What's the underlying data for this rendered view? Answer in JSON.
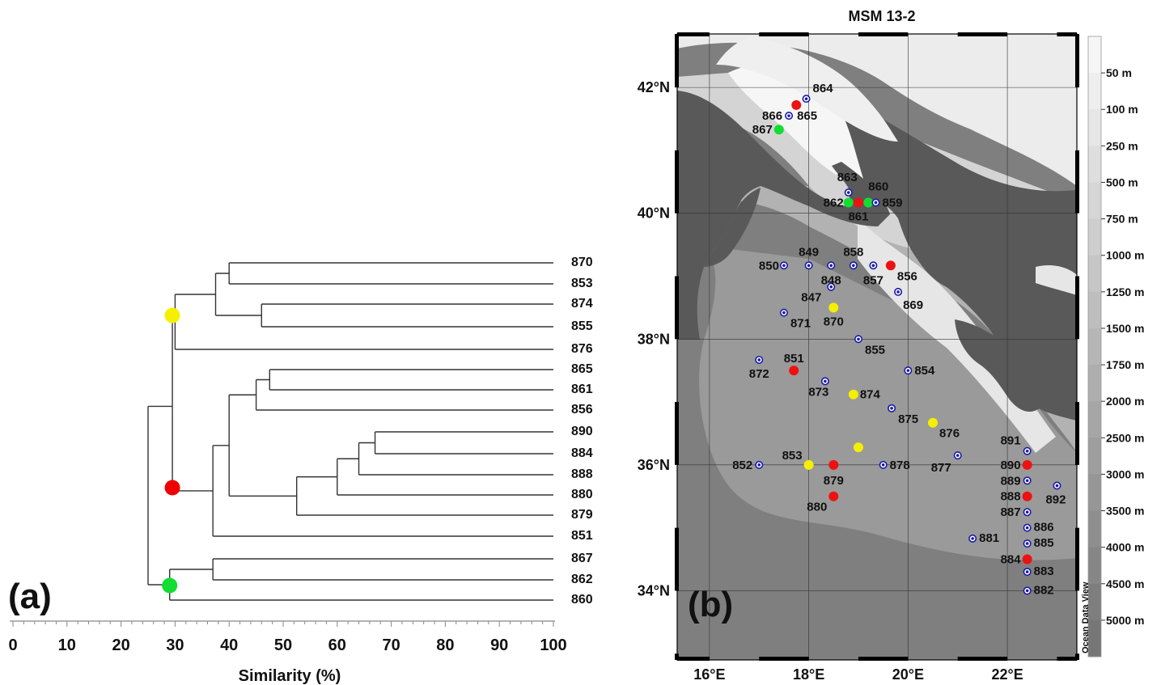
{
  "panel_a": {
    "tag": "(a)",
    "xlabel": "Similarity (%)",
    "ticks": [
      0,
      10,
      20,
      30,
      40,
      50,
      60,
      70,
      80,
      90,
      100
    ],
    "leaves": [
      "870",
      "853",
      "874",
      "855",
      "876",
      "865",
      "861",
      "856",
      "890",
      "884",
      "888",
      "880",
      "879",
      "851",
      "867",
      "862",
      "860"
    ],
    "clusters": [
      {
        "color": "#f5f000",
        "sim": 29.5
      },
      {
        "color": "#ee0000",
        "sim": 29.5
      },
      {
        "color": "#11dd33",
        "sim": 29.0
      }
    ],
    "chart_data": {
      "type": "dendrogram",
      "xlabel": "Similarity (%)",
      "xlim": [
        0,
        100
      ],
      "merges": [
        {
          "a": "870",
          "b": "853",
          "sim": 40
        },
        {
          "a": "874",
          "b": "855",
          "sim": 46
        },
        {
          "a": "870+853",
          "b": "874+855",
          "sim": 37.5
        },
        {
          "a": "870+853+874+855",
          "b": "876",
          "sim": 30
        },
        {
          "a": "865",
          "b": "861",
          "sim": 47.5
        },
        {
          "a": "865+861",
          "b": "856",
          "sim": 45
        },
        {
          "a": "890",
          "b": "884",
          "sim": 67
        },
        {
          "a": "890+884",
          "b": "888",
          "sim": 64
        },
        {
          "a": "890+884+888",
          "b": "880",
          "sim": 60
        },
        {
          "a": "890+884+888+880",
          "b": "879",
          "sim": 52.5
        },
        {
          "a": "865+861+856",
          "b": "890+884+888+880+879",
          "sim": 40
        },
        {
          "a": "865..879",
          "b": "851",
          "sim": 37
        },
        {
          "a": "yellow",
          "b": "red",
          "sim": 29.5
        },
        {
          "a": "867",
          "b": "862",
          "sim": 37
        },
        {
          "a": "867+862",
          "b": "860",
          "sim": 29
        },
        {
          "a": "yellow+red",
          "b": "green",
          "sim": 25
        }
      ]
    }
  },
  "panel_b": {
    "tag": "(b)",
    "title": "MSM 13-2",
    "lon_labels": [
      "16°E",
      "18°E",
      "20°E",
      "22°E"
    ],
    "lat_labels": [
      "42°N",
      "40°N",
      "38°N",
      "36°N",
      "34°N"
    ],
    "depth_labels": [
      "50 m",
      "100 m",
      "250 m",
      "500 m",
      "750 m",
      "1000 m",
      "1250 m",
      "1500 m",
      "1750 m",
      "2000 m",
      "2500 m",
      "3000 m",
      "3500 m",
      "4000 m",
      "4500 m",
      "5000 m"
    ],
    "watermark": "Ocean Data View",
    "stations": [
      {
        "id": "864",
        "lon": 17.95,
        "lat": 41.82,
        "c": "blue"
      },
      {
        "id": "",
        "lon": 17.75,
        "lat": 41.72,
        "c": "red"
      },
      {
        "id": "866",
        "lon": 17.6,
        "lat": 41.55,
        "c": "blue"
      },
      {
        "id": "865",
        "lon": 17.6,
        "lat": 41.55,
        "c": "none"
      },
      {
        "id": "867",
        "lon": 17.4,
        "lat": 41.33,
        "c": "green"
      },
      {
        "id": "863",
        "lon": 18.8,
        "lat": 40.33,
        "c": "blue"
      },
      {
        "id": "860",
        "lon": 19.2,
        "lat": 40.17,
        "c": "green"
      },
      {
        "id": "862",
        "lon": 18.8,
        "lat": 40.17,
        "c": "green"
      },
      {
        "id": "861",
        "lon": 19.0,
        "lat": 40.17,
        "c": "red"
      },
      {
        "id": "859",
        "lon": 19.35,
        "lat": 40.17,
        "c": "blue"
      },
      {
        "id": "850",
        "lon": 17.5,
        "lat": 39.17,
        "c": "blue"
      },
      {
        "id": "849",
        "lon": 18.0,
        "lat": 39.17,
        "c": "blue"
      },
      {
        "id": "",
        "lon": 18.45,
        "lat": 39.17,
        "c": "blue"
      },
      {
        "id": "858",
        "lon": 18.9,
        "lat": 39.17,
        "c": "blue"
      },
      {
        "id": "857",
        "lon": 19.3,
        "lat": 39.17,
        "c": "blue"
      },
      {
        "id": "856",
        "lon": 19.65,
        "lat": 39.17,
        "c": "red"
      },
      {
        "id": "848",
        "lon": 18.45,
        "lat": 38.83,
        "c": "blue"
      },
      {
        "id": "869",
        "lon": 19.8,
        "lat": 38.75,
        "c": "blue"
      },
      {
        "id": "847",
        "lon": 18.5,
        "lat": 38.5,
        "c": "yellow"
      },
      {
        "id": "871",
        "lon": 17.5,
        "lat": 38.42,
        "c": "blue"
      },
      {
        "id": "870",
        "lon": 18.5,
        "lat": 38.5,
        "c": "none"
      },
      {
        "id": "855",
        "lon": 19.0,
        "lat": 38.0,
        "c": "blue"
      },
      {
        "id": "851",
        "lon": 17.7,
        "lat": 37.5,
        "c": "red"
      },
      {
        "id": "872",
        "lon": 17.0,
        "lat": 37.67,
        "c": "blue"
      },
      {
        "id": "854",
        "lon": 20.0,
        "lat": 37.5,
        "c": "blue"
      },
      {
        "id": "873",
        "lon": 18.33,
        "lat": 37.33,
        "c": "blue"
      },
      {
        "id": "874",
        "lon": 18.9,
        "lat": 37.12,
        "c": "yellow"
      },
      {
        "id": "875",
        "lon": 19.67,
        "lat": 36.9,
        "c": "blue"
      },
      {
        "id": "876",
        "lon": 20.5,
        "lat": 36.67,
        "c": "yellow"
      },
      {
        "id": "",
        "lon": 19.0,
        "lat": 36.28,
        "c": "yellow"
      },
      {
        "id": "891",
        "lon": 22.4,
        "lat": 36.22,
        "c": "blue"
      },
      {
        "id": "877",
        "lon": 21.0,
        "lat": 36.15,
        "c": "blue"
      },
      {
        "id": "852",
        "lon": 17.0,
        "lat": 36.0,
        "c": "blue"
      },
      {
        "id": "853",
        "lon": 18.0,
        "lat": 36.0,
        "c": "yellow"
      },
      {
        "id": "879",
        "lon": 18.5,
        "lat": 36.0,
        "c": "red"
      },
      {
        "id": "878",
        "lon": 19.5,
        "lat": 36.0,
        "c": "blue"
      },
      {
        "id": "890",
        "lon": 22.4,
        "lat": 36.0,
        "c": "red"
      },
      {
        "id": "889",
        "lon": 22.4,
        "lat": 35.75,
        "c": "blue"
      },
      {
        "id": "892",
        "lon": 23.0,
        "lat": 35.67,
        "c": "blue"
      },
      {
        "id": "888",
        "lon": 22.4,
        "lat": 35.5,
        "c": "red"
      },
      {
        "id": "880",
        "lon": 18.5,
        "lat": 35.5,
        "c": "red"
      },
      {
        "id": "887",
        "lon": 22.4,
        "lat": 35.25,
        "c": "blue"
      },
      {
        "id": "886",
        "lon": 22.4,
        "lat": 35.0,
        "c": "blue"
      },
      {
        "id": "881",
        "lon": 21.3,
        "lat": 34.83,
        "c": "blue"
      },
      {
        "id": "885",
        "lon": 22.4,
        "lat": 34.75,
        "c": "blue"
      },
      {
        "id": "884",
        "lon": 22.4,
        "lat": 34.5,
        "c": "red"
      },
      {
        "id": "883",
        "lon": 22.4,
        "lat": 34.3,
        "c": "blue"
      },
      {
        "id": "882",
        "lon": 22.4,
        "lat": 34.0,
        "c": "blue"
      }
    ]
  }
}
